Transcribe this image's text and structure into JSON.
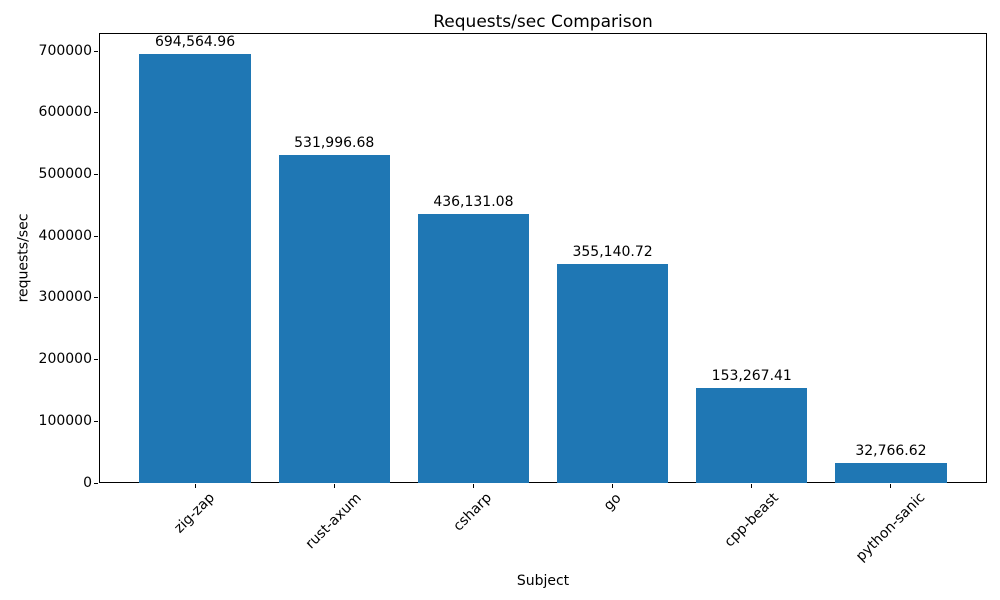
{
  "chart_data": {
    "type": "bar",
    "title": "Requests/sec Comparison",
    "xlabel": "Subject",
    "ylabel": "requests/sec",
    "categories": [
      "zig-zap",
      "rust-axum",
      "csharp",
      "go",
      "cpp-beast",
      "python-sanic"
    ],
    "values": [
      694564.96,
      531996.68,
      436131.08,
      355140.72,
      153267.41,
      32766.62
    ],
    "value_labels": [
      "694,564.96",
      "531,996.68",
      "436,131.08",
      "355,140.72",
      "153,267.41",
      "32,766.62"
    ],
    "y_ticks": [
      0,
      100000,
      200000,
      300000,
      400000,
      500000,
      600000,
      700000
    ],
    "y_tick_labels": [
      "0",
      "100000",
      "200000",
      "300000",
      "400000",
      "500000",
      "600000",
      "700000"
    ],
    "ylim": [
      0,
      729300
    ],
    "x_tick_rotation": 45,
    "grid": false,
    "bar_color": "#1f77b4",
    "frame_color": "#000000"
  }
}
